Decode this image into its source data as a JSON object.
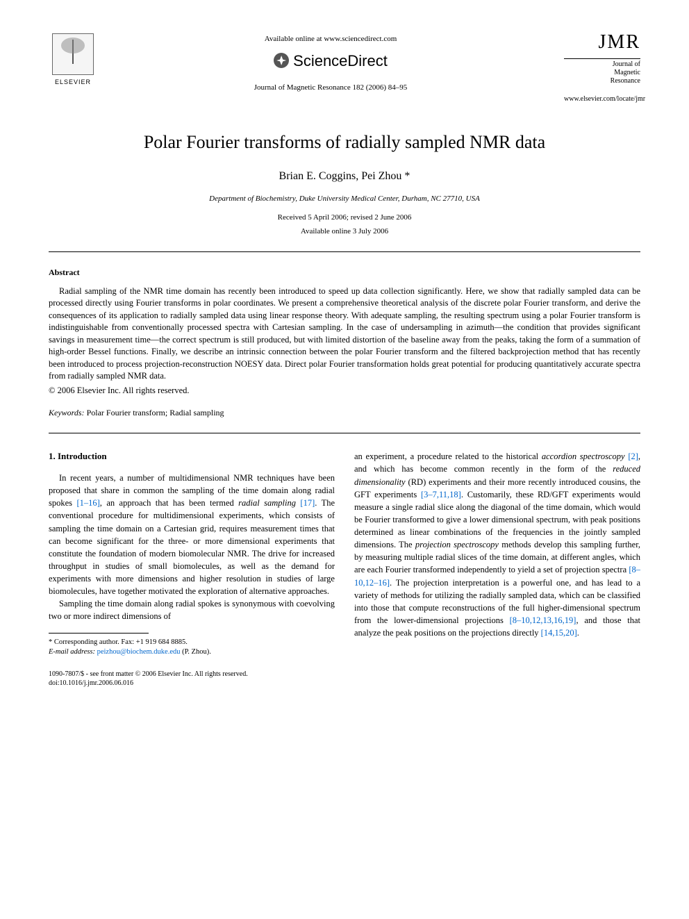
{
  "header": {
    "elsevier_label": "ELSEVIER",
    "available_online": "Available online at www.sciencedirect.com",
    "sciencedirect": "ScienceDirect",
    "journal_citation": "Journal of Magnetic Resonance 182 (2006) 84–95",
    "jmr_short": "JMR",
    "jmr_full_line1": "Journal of",
    "jmr_full_line2": "Magnetic",
    "jmr_full_line3": "Resonance",
    "jmr_url": "www.elsevier.com/locate/jmr"
  },
  "article": {
    "title": "Polar Fourier transforms of radially sampled NMR data",
    "authors": "Brian E. Coggins, Pei Zhou *",
    "affiliation": "Department of Biochemistry, Duke University Medical Center, Durham, NC 27710, USA",
    "received": "Received 5 April 2006; revised 2 June 2006",
    "available": "Available online 3 July 2006"
  },
  "abstract": {
    "heading": "Abstract",
    "body": "Radial sampling of the NMR time domain has recently been introduced to speed up data collection significantly. Here, we show that radially sampled data can be processed directly using Fourier transforms in polar coordinates. We present a comprehensive theoretical analysis of the discrete polar Fourier transform, and derive the consequences of its application to radially sampled data using linear response theory. With adequate sampling, the resulting spectrum using a polar Fourier transform is indistinguishable from conventionally processed spectra with Cartesian sampling. In the case of undersampling in azimuth—the condition that provides significant savings in measurement time—the correct spectrum is still produced, but with limited distortion of the baseline away from the peaks, taking the form of a summation of high-order Bessel functions. Finally, we describe an intrinsic connection between the polar Fourier transform and the filtered backprojection method that has recently been introduced to process projection-reconstruction NOESY data. Direct polar Fourier transformation holds great potential for producing quantitatively accurate spectra from radially sampled NMR data.",
    "copyright": "© 2006 Elsevier Inc. All rights reserved."
  },
  "keywords": {
    "label": "Keywords:",
    "text": " Polar Fourier transform; Radial sampling"
  },
  "sections": {
    "intro_heading": "1. Introduction",
    "intro_p1_a": "In recent years, a number of multidimensional NMR techniques have been proposed that share in common the sampling of the time domain along radial spokes ",
    "intro_p1_ref1": "[1–16]",
    "intro_p1_b": ", an approach that has been termed ",
    "intro_p1_ital": "radial sampling",
    "intro_p1_c": " ",
    "intro_p1_ref2": "[17]",
    "intro_p1_d": ". The conventional procedure for multidimensional experiments, which consists of sampling the time domain on a Cartesian grid, requires measurement times that can become significant for the three- or more dimensional experiments that constitute the foundation of modern biomolecular NMR. The drive for increased throughput in studies of small biomolecules, as well as the demand for experiments with more dimensions and higher resolution in studies of large biomolecules, have together motivated the exploration of alternative approaches.",
    "intro_p2": "Sampling the time domain along radial spokes is synonymous with coevolving two or more indirect dimensions of",
    "intro_p3_a": "an experiment, a procedure related to the historical ",
    "intro_p3_ital1": "accordion spectroscopy",
    "intro_p3_b": " ",
    "intro_p3_ref1": "[2]",
    "intro_p3_c": ", and which has become common recently in the form of the ",
    "intro_p3_ital2": "reduced dimensionality",
    "intro_p3_d": " (RD) experiments and their more recently introduced cousins, the GFT experiments ",
    "intro_p3_ref2": "[3–7,11,18]",
    "intro_p3_e": ". Customarily, these RD/GFT experiments would measure a single radial slice along the diagonal of the time domain, which would be Fourier transformed to give a lower dimensional spectrum, with peak positions determined as linear combinations of the frequencies in the jointly sampled dimensions. The ",
    "intro_p3_ital3": "projection spectroscopy",
    "intro_p3_f": " methods develop this sampling further, by measuring multiple radial slices of the time domain, at different angles, which are each Fourier transformed independently to yield a set of projection spectra ",
    "intro_p3_ref3": "[8–10,12–16]",
    "intro_p3_g": ". The projection interpretation is a powerful one, and has lead to a variety of methods for utilizing the radially sampled data, which can be classified into those that compute reconstructions of the full higher-dimensional spectrum from the lower-dimensional projections ",
    "intro_p3_ref4": "[8–10,12,13,16,19]",
    "intro_p3_h": ", and those that analyze the peak positions on the projections directly ",
    "intro_p3_ref5": "[14,15,20]",
    "intro_p3_i": "."
  },
  "footnotes": {
    "corresponding": "* Corresponding author. Fax: +1 919 684 8885.",
    "email_label": "E-mail address:",
    "email": "peizhou@biochem.duke.edu",
    "email_author": " (P. Zhou)."
  },
  "doi": {
    "line1": "1090-7807/$ - see front matter © 2006 Elsevier Inc. All rights reserved.",
    "line2": "doi:10.1016/j.jmr.2006.06.016"
  }
}
